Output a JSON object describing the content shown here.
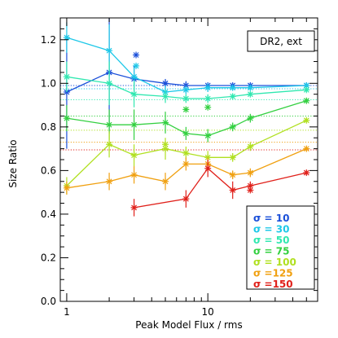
{
  "chart_data": {
    "type": "line",
    "title": "",
    "annotation": "DR2, ext",
    "xlabel": "Peak Model Flux / rms",
    "ylabel": "Size Ratio",
    "xscale": "log",
    "xlim": [
      0.9,
      60
    ],
    "ylim": [
      0.0,
      1.3
    ],
    "xticks": [
      1,
      10
    ],
    "xtick_labels": [
      "1",
      "10"
    ],
    "yticks": [
      0.0,
      0.2,
      0.4,
      0.6,
      0.8,
      1.0,
      1.2
    ],
    "ytick_labels": [
      "0.0",
      "0.2",
      "0.4",
      "0.6",
      "0.8",
      "1.0",
      "1.2"
    ],
    "legend_position": "bottom-right",
    "series": [
      {
        "name": "σ = 10",
        "color": "#1a4fd9",
        "dotted_level": 0.99,
        "x": [
          1,
          2,
          3,
          5,
          7,
          10,
          15,
          20,
          50
        ],
        "y": [
          0.96,
          1.05,
          1.02,
          1.0,
          0.99,
          0.99,
          0.99,
          0.99,
          0.99
        ],
        "err": [
          0.26,
          0.28,
          0.06,
          0.02,
          0.02,
          0.01,
          0.01,
          0.01,
          0.01
        ],
        "extra_markers": [
          {
            "x": 3.1,
            "y": 1.13
          }
        ]
      },
      {
        "name": "σ = 30",
        "color": "#1ec8e8",
        "dotted_level": 0.975,
        "x": [
          1,
          2,
          3,
          5,
          7,
          10,
          15,
          20,
          50
        ],
        "y": [
          1.21,
          1.15,
          1.03,
          0.96,
          0.97,
          0.98,
          0.98,
          0.98,
          0.99
        ],
        "err": [
          0.07,
          0.12,
          0.04,
          0.03,
          0.02,
          0.02,
          0.01,
          0.01,
          0.01
        ],
        "extra_markers": [
          {
            "x": 3.1,
            "y": 1.08
          }
        ]
      },
      {
        "name": "σ = 50",
        "color": "#30e8b0",
        "dotted_level": 0.925,
        "x": [
          1,
          2,
          3,
          5,
          7,
          10,
          15,
          20,
          50
        ],
        "y": [
          1.03,
          1.0,
          0.95,
          0.94,
          0.93,
          0.93,
          0.94,
          0.95,
          0.97
        ],
        "err": [
          0.07,
          0.1,
          0.06,
          0.03,
          0.02,
          0.02,
          0.01,
          0.01,
          0.01
        ],
        "extra_markers": []
      },
      {
        "name": "σ = 75",
        "color": "#33d040",
        "dotted_level": 0.85,
        "x": [
          1,
          2,
          3,
          5,
          7,
          10,
          15,
          20,
          50
        ],
        "y": [
          0.84,
          0.81,
          0.81,
          0.82,
          0.77,
          0.76,
          0.8,
          0.84,
          0.92
        ],
        "err": [
          0.06,
          0.07,
          0.07,
          0.05,
          0.03,
          0.03,
          0.02,
          0.02,
          0.01
        ],
        "extra_markers": [
          {
            "x": 7,
            "y": 0.88
          },
          {
            "x": 10,
            "y": 0.89
          }
        ]
      },
      {
        "name": "σ = 100",
        "color": "#b0e020",
        "dotted_level": 0.785,
        "x": [
          1,
          2,
          3,
          5,
          7,
          10,
          15,
          20,
          50
        ],
        "y": [
          0.53,
          0.72,
          0.67,
          0.7,
          0.68,
          0.66,
          0.66,
          0.71,
          0.83
        ],
        "err": [
          0.04,
          0.06,
          0.05,
          0.05,
          0.03,
          0.03,
          0.02,
          0.02,
          0.01
        ],
        "extra_markers": [
          {
            "x": 5,
            "y": 0.72
          }
        ]
      },
      {
        "name": "σ =125",
        "color": "#f0a010",
        "dotted_level": 0.73,
        "x": [
          1,
          2,
          3,
          5,
          7,
          10,
          15,
          20,
          50
        ],
        "y": [
          0.52,
          0.55,
          0.58,
          0.55,
          0.63,
          0.63,
          0.58,
          0.59,
          0.7
        ],
        "err": [
          0.03,
          0.04,
          0.04,
          0.04,
          0.03,
          0.03,
          0.02,
          0.02,
          0.01
        ],
        "extra_markers": []
      },
      {
        "name": "σ =150",
        "color": "#e0201a",
        "dotted_level": 0.695,
        "x": [
          3,
          7,
          10,
          15,
          20,
          50
        ],
        "y": [
          0.43,
          0.47,
          0.61,
          0.51,
          0.53,
          0.59
        ],
        "err": [
          0.04,
          0.04,
          0.04,
          0.04,
          0.02,
          0.01
        ],
        "extra_markers": [
          {
            "x": 20,
            "y": 0.51
          }
        ]
      }
    ]
  }
}
